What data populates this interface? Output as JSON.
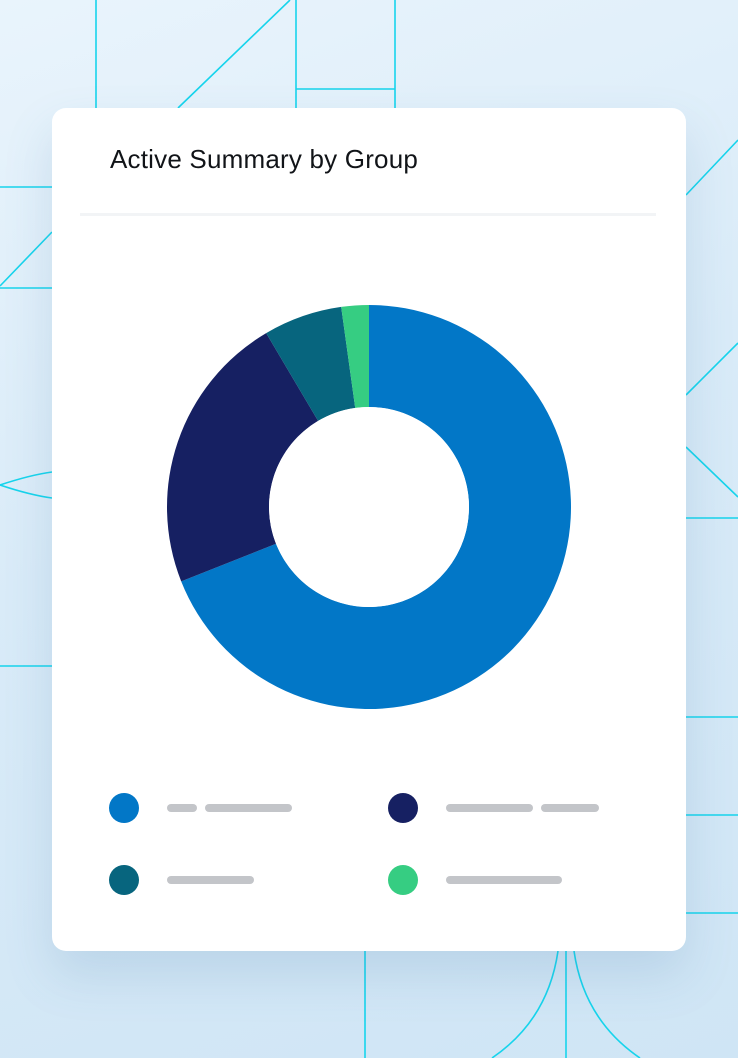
{
  "card": {
    "title": "Active Summary by Group"
  },
  "colors": {
    "background": "#dcedf9",
    "pattern_line": "#16d4ec",
    "placeholder_bar": "#c3c5c9"
  },
  "chart_data": {
    "type": "pie",
    "donut": true,
    "title": "Active Summary by Group",
    "legend": "bottom",
    "series": [
      {
        "value": 69,
        "color": "#0277c7"
      },
      {
        "value": 22.5,
        "color": "#162062"
      },
      {
        "value": 6.3,
        "color": "#07657e"
      },
      {
        "value": 2.2,
        "color": "#36cd82"
      }
    ]
  }
}
